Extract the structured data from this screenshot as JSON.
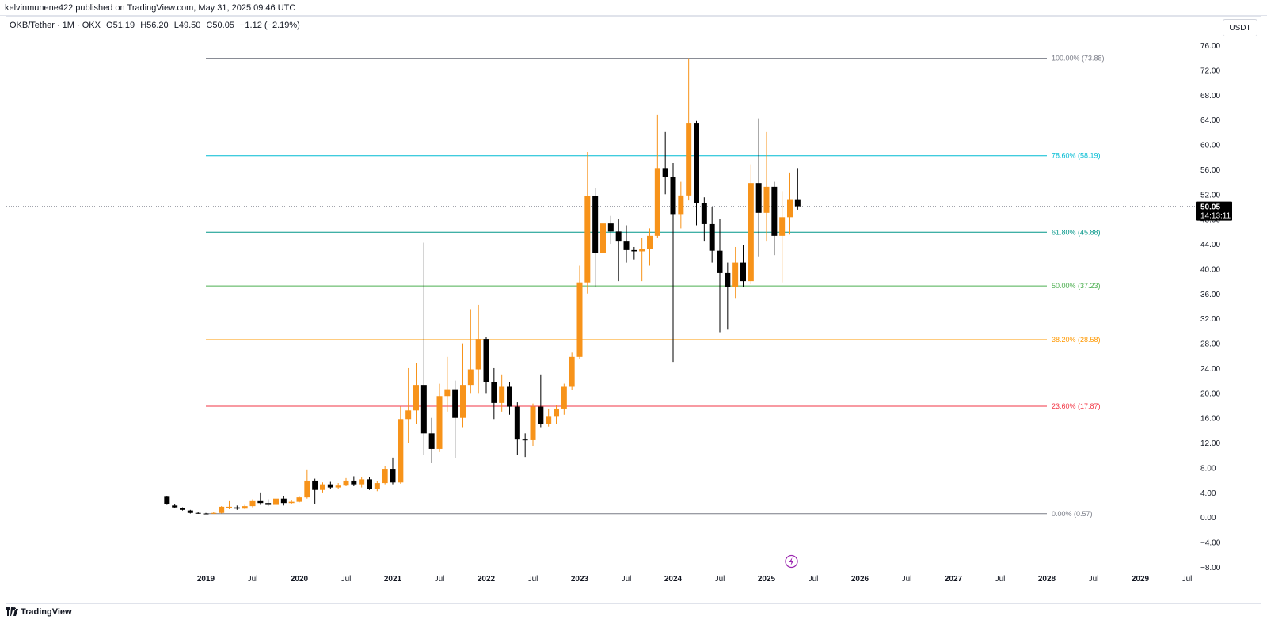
{
  "header": {
    "publish_line": "kelvinmunene422 published on TradingView.com, May 31, 2025 09:46 UTC"
  },
  "legend": {
    "symbol": "OKB/Tether",
    "interval": "1M",
    "exchange": "OKX",
    "open": "O51.19",
    "high": "H56.20",
    "low": "L49.50",
    "close": "C50.05",
    "change": "−1.12 (−2.19%)"
  },
  "currency_button": "USDT",
  "price_tag": {
    "price": "50.05",
    "countdown": "14:13:11"
  },
  "footer": {
    "brand": "TradingView"
  },
  "colors": {
    "up": "#f7931a",
    "down": "#000000",
    "axis_text": "#131722"
  },
  "chart_data": {
    "type": "candlestick",
    "interval": "1M",
    "ylim": [
      -8,
      78
    ],
    "y_ticks": [
      "76.00",
      "72.00",
      "68.00",
      "64.00",
      "60.00",
      "56.00",
      "52.00",
      "48.00",
      "44.00",
      "40.00",
      "36.00",
      "32.00",
      "28.00",
      "24.00",
      "20.00",
      "16.00",
      "12.00",
      "8.00",
      "4.00",
      "0.00",
      "−4.00",
      "−8.00"
    ],
    "y_tick_values": [
      76,
      72,
      68,
      64,
      60,
      56,
      52,
      48,
      44,
      40,
      36,
      32,
      28,
      24,
      20,
      16,
      12,
      8,
      4,
      0,
      -4,
      -8
    ],
    "x_labels": [
      {
        "label": "2019",
        "date": "2019-01"
      },
      {
        "label": "Jul",
        "date": "2019-07"
      },
      {
        "label": "2020",
        "date": "2020-01"
      },
      {
        "label": "Jul",
        "date": "2020-07"
      },
      {
        "label": "2021",
        "date": "2021-01"
      },
      {
        "label": "Jul",
        "date": "2021-07"
      },
      {
        "label": "2022",
        "date": "2022-01"
      },
      {
        "label": "Jul",
        "date": "2022-07"
      },
      {
        "label": "2023",
        "date": "2023-01"
      },
      {
        "label": "Jul",
        "date": "2023-07"
      },
      {
        "label": "2024",
        "date": "2024-01"
      },
      {
        "label": "Jul",
        "date": "2024-07"
      },
      {
        "label": "2025",
        "date": "2025-01"
      },
      {
        "label": "Jul",
        "date": "2025-07"
      },
      {
        "label": "2026",
        "date": "2026-01"
      },
      {
        "label": "Jul",
        "date": "2026-07"
      },
      {
        "label": "2027",
        "date": "2027-01"
      },
      {
        "label": "Jul",
        "date": "2027-07"
      },
      {
        "label": "2028",
        "date": "2028-01"
      },
      {
        "label": "Jul",
        "date": "2028-07"
      },
      {
        "label": "2029",
        "date": "2029-01"
      },
      {
        "label": "Jul",
        "date": "2029-07"
      }
    ],
    "candles": [
      {
        "date": "2018-08",
        "o": 3.3,
        "h": 3.4,
        "c": 2.1,
        "l": 2.0
      },
      {
        "date": "2018-09",
        "o": 1.9,
        "h": 2.1,
        "c": 1.6,
        "l": 1.5
      },
      {
        "date": "2018-10",
        "o": 1.5,
        "h": 1.6,
        "c": 1.2,
        "l": 1.1
      },
      {
        "date": "2018-11",
        "o": 1.1,
        "h": 1.2,
        "c": 0.7,
        "l": 0.6
      },
      {
        "date": "2018-12",
        "o": 0.7,
        "h": 0.8,
        "c": 0.6,
        "l": 0.55
      },
      {
        "date": "2019-01",
        "o": 0.6,
        "h": 0.7,
        "c": 0.57,
        "l": 0.57
      },
      {
        "date": "2019-02",
        "o": 0.57,
        "h": 0.8,
        "c": 0.7,
        "l": 0.55
      },
      {
        "date": "2019-03",
        "o": 0.7,
        "h": 1.8,
        "c": 1.7,
        "l": 0.6
      },
      {
        "date": "2019-04",
        "o": 1.5,
        "h": 2.6,
        "c": 1.7,
        "l": 1.3
      },
      {
        "date": "2019-05",
        "o": 1.6,
        "h": 1.9,
        "c": 1.4,
        "l": 1.2
      },
      {
        "date": "2019-06",
        "o": 1.4,
        "h": 2.0,
        "c": 1.8,
        "l": 1.3
      },
      {
        "date": "2019-07",
        "o": 1.8,
        "h": 2.9,
        "c": 2.6,
        "l": 1.6
      },
      {
        "date": "2019-08",
        "o": 2.6,
        "h": 4.0,
        "c": 2.3,
        "l": 2.0
      },
      {
        "date": "2019-09",
        "o": 2.3,
        "h": 2.9,
        "c": 2.0,
        "l": 1.8
      },
      {
        "date": "2019-10",
        "o": 2.0,
        "h": 3.3,
        "c": 3.0,
        "l": 1.9
      },
      {
        "date": "2019-11",
        "o": 3.0,
        "h": 3.4,
        "c": 2.3,
        "l": 1.9
      },
      {
        "date": "2019-12",
        "o": 2.3,
        "h": 2.8,
        "c": 2.5,
        "l": 2.1
      },
      {
        "date": "2020-01",
        "o": 2.5,
        "h": 3.3,
        "c": 3.2,
        "l": 2.4
      },
      {
        "date": "2020-02",
        "o": 3.2,
        "h": 7.7,
        "c": 5.9,
        "l": 3.0
      },
      {
        "date": "2020-03",
        "o": 5.9,
        "h": 6.2,
        "c": 4.4,
        "l": 2.2
      },
      {
        "date": "2020-04",
        "o": 4.4,
        "h": 5.6,
        "c": 5.3,
        "l": 4.0
      },
      {
        "date": "2020-05",
        "o": 5.3,
        "h": 5.7,
        "c": 4.8,
        "l": 4.5
      },
      {
        "date": "2020-06",
        "o": 4.8,
        "h": 5.5,
        "c": 5.1,
        "l": 4.6
      },
      {
        "date": "2020-07",
        "o": 5.1,
        "h": 6.3,
        "c": 5.9,
        "l": 5.0
      },
      {
        "date": "2020-08",
        "o": 5.9,
        "h": 6.6,
        "c": 5.3,
        "l": 5.0
      },
      {
        "date": "2020-09",
        "o": 5.3,
        "h": 6.5,
        "c": 6.1,
        "l": 4.8
      },
      {
        "date": "2020-10",
        "o": 6.1,
        "h": 6.4,
        "c": 4.6,
        "l": 4.4
      },
      {
        "date": "2020-11",
        "o": 4.6,
        "h": 5.8,
        "c": 5.5,
        "l": 4.2
      },
      {
        "date": "2020-12",
        "o": 5.5,
        "h": 8.2,
        "c": 7.8,
        "l": 5.3
      },
      {
        "date": "2021-01",
        "o": 7.8,
        "h": 9.6,
        "c": 5.6,
        "l": 5.3
      },
      {
        "date": "2021-02",
        "o": 5.6,
        "h": 17.8,
        "c": 15.8,
        "l": 5.4
      },
      {
        "date": "2021-03",
        "o": 15.8,
        "h": 24.0,
        "c": 17.2,
        "l": 12.0
      },
      {
        "date": "2021-04",
        "o": 17.2,
        "h": 24.8,
        "c": 21.3,
        "l": 15.0
      },
      {
        "date": "2021-05",
        "o": 21.3,
        "h": 44.2,
        "c": 13.5,
        "l": 10.0
      },
      {
        "date": "2021-06",
        "o": 13.5,
        "h": 16.0,
        "c": 11.0,
        "l": 8.7
      },
      {
        "date": "2021-07",
        "o": 11.0,
        "h": 21.5,
        "c": 19.5,
        "l": 10.5
      },
      {
        "date": "2021-08",
        "o": 19.5,
        "h": 25.8,
        "c": 20.6,
        "l": 17.0
      },
      {
        "date": "2021-09",
        "o": 20.6,
        "h": 22.0,
        "c": 16.0,
        "l": 9.5
      },
      {
        "date": "2021-10",
        "o": 16.0,
        "h": 28.0,
        "c": 21.3,
        "l": 14.5
      },
      {
        "date": "2021-11",
        "o": 21.3,
        "h": 33.5,
        "c": 23.8,
        "l": 20.0
      },
      {
        "date": "2021-12",
        "o": 23.8,
        "h": 34.2,
        "c": 28.7,
        "l": 20.0
      },
      {
        "date": "2022-01",
        "o": 28.7,
        "h": 29.0,
        "c": 21.8,
        "l": 20.0
      },
      {
        "date": "2022-02",
        "o": 21.8,
        "h": 24.0,
        "c": 18.4,
        "l": 15.8
      },
      {
        "date": "2022-03",
        "o": 18.4,
        "h": 23.0,
        "c": 21.0,
        "l": 17.0
      },
      {
        "date": "2022-04",
        "o": 21.0,
        "h": 21.8,
        "c": 17.8,
        "l": 16.5
      },
      {
        "date": "2022-05",
        "o": 17.8,
        "h": 18.5,
        "c": 12.5,
        "l": 10.0
      },
      {
        "date": "2022-06",
        "o": 12.5,
        "h": 13.5,
        "c": 12.4,
        "l": 9.7
      },
      {
        "date": "2022-07",
        "o": 12.4,
        "h": 18.3,
        "c": 17.8,
        "l": 11.5
      },
      {
        "date": "2022-08",
        "o": 17.8,
        "h": 23.0,
        "c": 15.0,
        "l": 14.5
      },
      {
        "date": "2022-09",
        "o": 15.0,
        "h": 17.5,
        "c": 16.3,
        "l": 14.6
      },
      {
        "date": "2022-10",
        "o": 16.3,
        "h": 18.0,
        "c": 17.5,
        "l": 15.0
      },
      {
        "date": "2022-11",
        "o": 17.5,
        "h": 21.5,
        "c": 21.0,
        "l": 16.5
      },
      {
        "date": "2022-12",
        "o": 21.0,
        "h": 26.5,
        "c": 25.8,
        "l": 20.5
      },
      {
        "date": "2023-01",
        "o": 25.8,
        "h": 40.5,
        "c": 37.8,
        "l": 25.5
      },
      {
        "date": "2023-02",
        "o": 37.8,
        "h": 58.8,
        "c": 51.7,
        "l": 36.0
      },
      {
        "date": "2023-03",
        "o": 51.7,
        "h": 53.0,
        "c": 42.5,
        "l": 37.0
      },
      {
        "date": "2023-04",
        "o": 42.5,
        "h": 56.5,
        "c": 47.3,
        "l": 41.0
      },
      {
        "date": "2023-05",
        "o": 47.3,
        "h": 48.5,
        "c": 46.0,
        "l": 44.0
      },
      {
        "date": "2023-06",
        "o": 46.0,
        "h": 48.0,
        "c": 44.5,
        "l": 38.0
      },
      {
        "date": "2023-07",
        "o": 44.5,
        "h": 47.0,
        "c": 43.0,
        "l": 41.0
      },
      {
        "date": "2023-08",
        "o": 43.0,
        "h": 43.5,
        "c": 42.8,
        "l": 41.5
      },
      {
        "date": "2023-09",
        "o": 42.8,
        "h": 45.0,
        "c": 43.2,
        "l": 38.0
      },
      {
        "date": "2023-10",
        "o": 43.2,
        "h": 46.5,
        "c": 45.3,
        "l": 40.5
      },
      {
        "date": "2023-11",
        "o": 45.3,
        "h": 64.8,
        "c": 56.2,
        "l": 45.0
      },
      {
        "date": "2023-12",
        "o": 56.2,
        "h": 62.0,
        "c": 54.8,
        "l": 52.0
      },
      {
        "date": "2024-01",
        "o": 54.8,
        "h": 57.0,
        "c": 48.8,
        "l": 25.0
      },
      {
        "date": "2024-02",
        "o": 48.8,
        "h": 54.0,
        "c": 51.8,
        "l": 46.5
      },
      {
        "date": "2024-03",
        "o": 51.8,
        "h": 73.88,
        "c": 63.5,
        "l": 51.0
      },
      {
        "date": "2024-04",
        "o": 63.5,
        "h": 63.8,
        "c": 50.6,
        "l": 47.0
      },
      {
        "date": "2024-05",
        "o": 50.6,
        "h": 51.5,
        "c": 47.2,
        "l": 44.5
      },
      {
        "date": "2024-06",
        "o": 47.2,
        "h": 50.0,
        "c": 42.9,
        "l": 41.0
      },
      {
        "date": "2024-07",
        "o": 42.9,
        "h": 48.0,
        "c": 39.3,
        "l": 29.8
      },
      {
        "date": "2024-08",
        "o": 39.3,
        "h": 41.0,
        "c": 37.0,
        "l": 30.2
      },
      {
        "date": "2024-09",
        "o": 37.0,
        "h": 43.5,
        "c": 41.0,
        "l": 35.3
      },
      {
        "date": "2024-10",
        "o": 41.0,
        "h": 43.8,
        "c": 38.0,
        "l": 37.0
      },
      {
        "date": "2024-11",
        "o": 38.0,
        "h": 56.8,
        "c": 53.8,
        "l": 37.5
      },
      {
        "date": "2024-12",
        "o": 53.8,
        "h": 64.2,
        "c": 49.0,
        "l": 42.0
      },
      {
        "date": "2025-01",
        "o": 49.0,
        "h": 62.0,
        "c": 53.2,
        "l": 44.5
      },
      {
        "date": "2025-02",
        "o": 53.2,
        "h": 54.0,
        "c": 45.3,
        "l": 42.2
      },
      {
        "date": "2025-03",
        "o": 45.3,
        "h": 52.5,
        "c": 48.3,
        "l": 37.8
      },
      {
        "date": "2025-04",
        "o": 48.3,
        "h": 55.5,
        "c": 51.2,
        "l": 45.5
      },
      {
        "date": "2025-05",
        "o": 51.19,
        "h": 56.2,
        "c": 50.05,
        "l": 49.5
      }
    ],
    "last_price": 50.05,
    "fib_levels": [
      {
        "label": "100.00% (73.88)",
        "value": 73.88,
        "color": "#787b86"
      },
      {
        "label": "78.60% (58.19)",
        "value": 58.19,
        "color": "#00bcd4"
      },
      {
        "label": "61.80% (45.88)",
        "value": 45.88,
        "color": "#009688"
      },
      {
        "label": "50.00% (37.23)",
        "value": 37.23,
        "color": "#4caf50"
      },
      {
        "label": "38.20% (28.58)",
        "value": 28.58,
        "color": "#ff9800"
      },
      {
        "label": "23.60% (17.87)",
        "value": 17.87,
        "color": "#f23645"
      },
      {
        "label": "0.00% (0.57)",
        "value": 0.57,
        "color": "#787b86"
      }
    ],
    "fib_start": "2019-01",
    "fib_end": "2028-01",
    "event_marker": "2025-04"
  }
}
